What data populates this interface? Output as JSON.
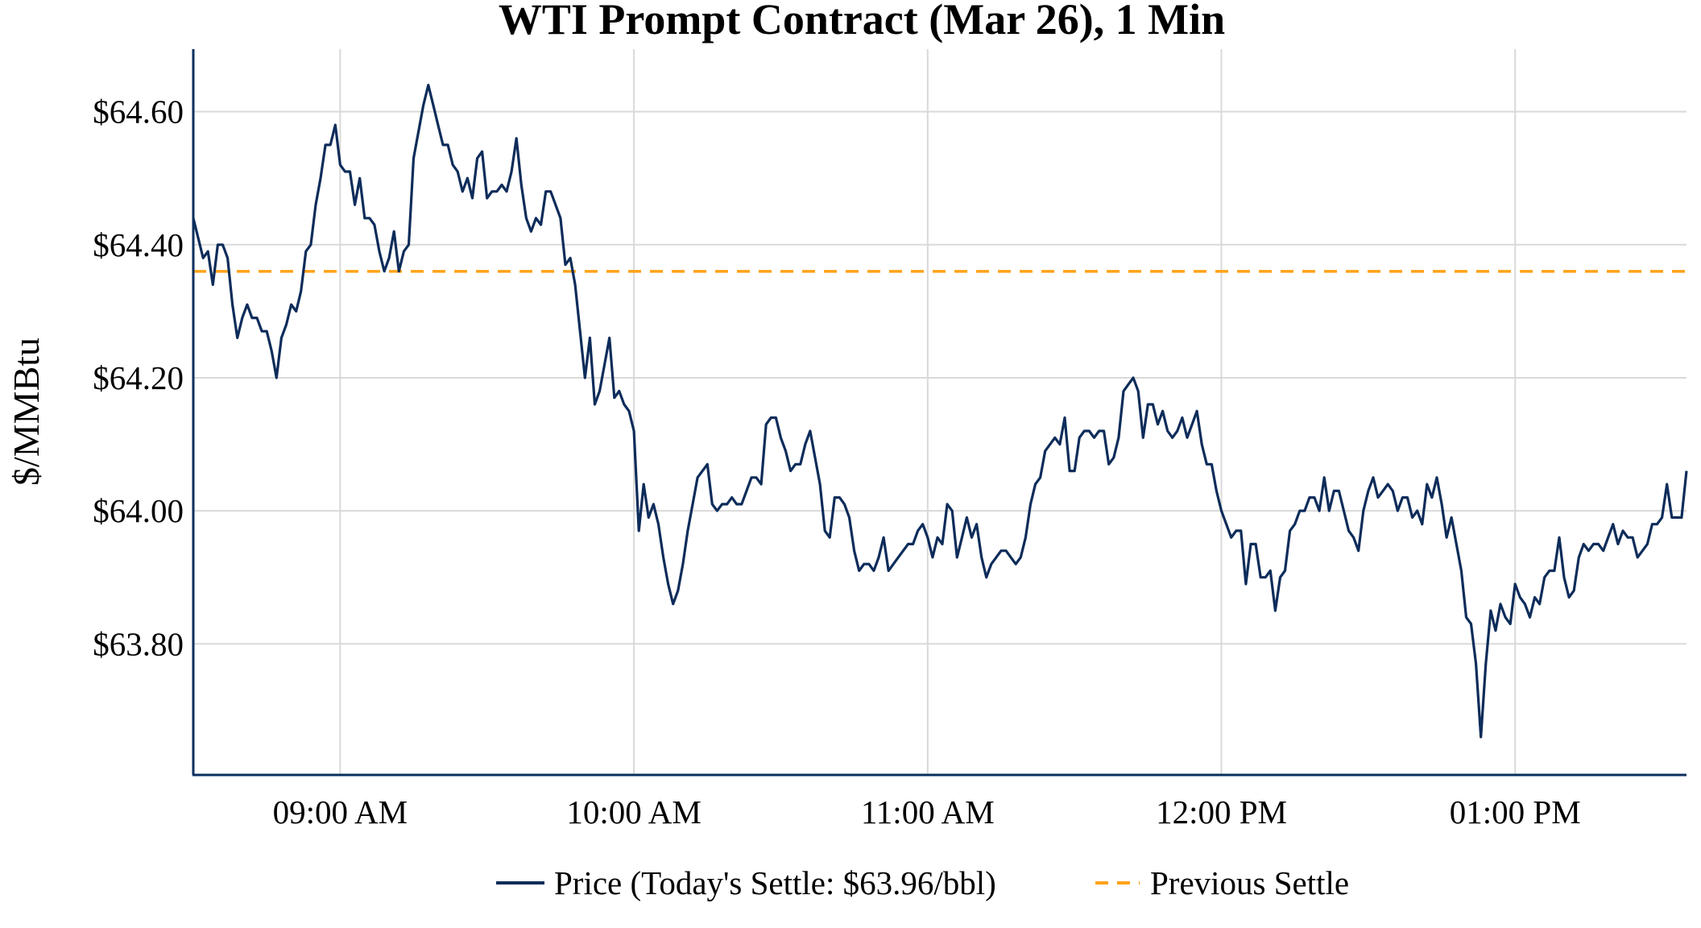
{
  "chart_data": {
    "type": "line",
    "title": "WTI Prompt Contract (Mar 26), 1 Min",
    "xlabel": "",
    "ylabel": "$/MMBtu",
    "grid": true,
    "legend_position": "bottom-center",
    "x_start": "08:30",
    "x_end": "13:35",
    "x_interval_note": "1 min",
    "xlim_minutes_of_day": [
      510,
      815
    ],
    "ylim": [
      63.603,
      64.694
    ],
    "x_ticks": [
      {
        "label": "09:00 AM",
        "minute": 540
      },
      {
        "label": "10:00 AM",
        "minute": 600
      },
      {
        "label": "11:00 AM",
        "minute": 660
      },
      {
        "label": "12:00 PM",
        "minute": 720
      },
      {
        "label": "01:00 PM",
        "minute": 780
      }
    ],
    "y_ticks": [
      {
        "label": "$64.60",
        "value": 64.6
      },
      {
        "label": "$64.40",
        "value": 64.4
      },
      {
        "label": "$64.20",
        "value": 64.2
      },
      {
        "label": "$64.00",
        "value": 64.0
      },
      {
        "label": "$63.80",
        "value": 63.8
      }
    ],
    "series": [
      {
        "name": "Price (Today's Settle: $63.96/bbl)",
        "color": "#0d2c5a",
        "style": "solid",
        "values": [
          64.44,
          64.41,
          64.38,
          64.39,
          64.34,
          64.4,
          64.4,
          64.38,
          64.31,
          64.26,
          64.29,
          64.31,
          64.29,
          64.29,
          64.27,
          64.27,
          64.24,
          64.2,
          64.26,
          64.28,
          64.31,
          64.3,
          64.33,
          64.39,
          64.4,
          64.46,
          64.5,
          64.55,
          64.55,
          64.58,
          64.52,
          64.51,
          64.51,
          64.46,
          64.5,
          64.44,
          64.44,
          64.43,
          64.39,
          64.36,
          64.38,
          64.42,
          64.36,
          64.39,
          64.4,
          64.53,
          64.57,
          64.61,
          64.64,
          64.61,
          64.58,
          64.55,
          64.55,
          64.52,
          64.51,
          64.48,
          64.5,
          64.47,
          64.53,
          64.54,
          64.47,
          64.48,
          64.48,
          64.49,
          64.48,
          64.51,
          64.56,
          64.49,
          64.44,
          64.42,
          64.44,
          64.43,
          64.48,
          64.48,
          64.46,
          64.44,
          64.37,
          64.38,
          64.34,
          64.27,
          64.2,
          64.26,
          64.16,
          64.18,
          64.22,
          64.26,
          64.17,
          64.18,
          64.16,
          64.15,
          64.12,
          63.97,
          64.04,
          63.99,
          64.01,
          63.98,
          63.93,
          63.89,
          63.86,
          63.88,
          63.92,
          63.97,
          64.01,
          64.05,
          64.06,
          64.07,
          64.01,
          64.0,
          64.01,
          64.01,
          64.02,
          64.01,
          64.01,
          64.03,
          64.05,
          64.05,
          64.04,
          64.13,
          64.14,
          64.14,
          64.11,
          64.09,
          64.06,
          64.07,
          64.07,
          64.1,
          64.12,
          64.08,
          64.04,
          63.97,
          63.96,
          64.02,
          64.02,
          64.01,
          63.99,
          63.94,
          63.91,
          63.92,
          63.92,
          63.91,
          63.93,
          63.96,
          63.91,
          63.92,
          63.93,
          63.94,
          63.95,
          63.95,
          63.97,
          63.98,
          63.96,
          63.93,
          63.96,
          63.95,
          64.01,
          64.0,
          63.93,
          63.96,
          63.99,
          63.96,
          63.98,
          63.93,
          63.9,
          63.92,
          63.93,
          63.94,
          63.94,
          63.93,
          63.92,
          63.93,
          63.96,
          64.01,
          64.04,
          64.05,
          64.09,
          64.1,
          64.11,
          64.1,
          64.14,
          64.06,
          64.06,
          64.11,
          64.12,
          64.12,
          64.11,
          64.12,
          64.12,
          64.07,
          64.08,
          64.11,
          64.18,
          64.19,
          64.2,
          64.18,
          64.11,
          64.16,
          64.16,
          64.13,
          64.15,
          64.12,
          64.11,
          64.12,
          64.14,
          64.11,
          64.13,
          64.15,
          64.1,
          64.07,
          64.07,
          64.03,
          64.0,
          63.98,
          63.96,
          63.97,
          63.97,
          63.89,
          63.95,
          63.95,
          63.9,
          63.9,
          63.91,
          63.85,
          63.9,
          63.91,
          63.97,
          63.98,
          64.0,
          64.0,
          64.02,
          64.02,
          64.0,
          64.05,
          64.0,
          64.03,
          64.03,
          64.0,
          63.97,
          63.96,
          63.94,
          64.0,
          64.03,
          64.05,
          64.02,
          64.03,
          64.04,
          64.03,
          64.0,
          64.02,
          64.02,
          63.99,
          64.0,
          63.98,
          64.04,
          64.02,
          64.05,
          64.01,
          63.96,
          63.99,
          63.95,
          63.91,
          63.84,
          63.83,
          63.77,
          63.66,
          63.77,
          63.85,
          63.82,
          63.86,
          63.84,
          63.83,
          63.89,
          63.87,
          63.86,
          63.84,
          63.87,
          63.86,
          63.9,
          63.91,
          63.91,
          63.96,
          63.9,
          63.87,
          63.88,
          63.93,
          63.95,
          63.94,
          63.95,
          63.95,
          63.94,
          63.96,
          63.98,
          63.95,
          63.97,
          63.96,
          63.96,
          63.93,
          63.94,
          63.95,
          63.98,
          63.98,
          63.99,
          64.04,
          63.99,
          63.99,
          63.99,
          64.06
        ]
      },
      {
        "name": "Previous Settle",
        "color": "#ffa31a",
        "style": "dashed",
        "value": 64.36
      }
    ]
  }
}
